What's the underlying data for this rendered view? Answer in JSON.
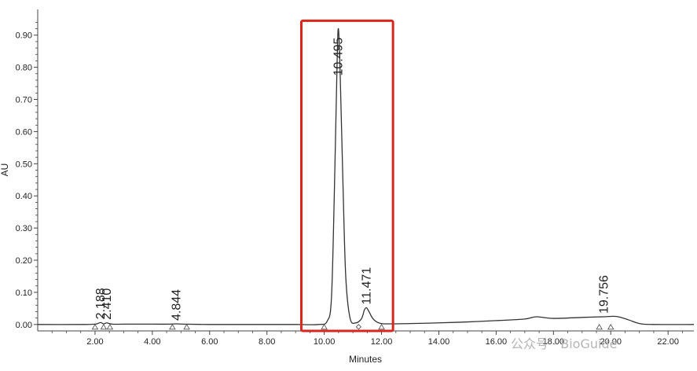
{
  "chart_data": {
    "type": "line",
    "title": "",
    "xlabel": "Minutes",
    "ylabel": "AU",
    "xlim": [
      0.0,
      22.9
    ],
    "ylim": [
      -0.02,
      0.98
    ],
    "x_ticks": [
      2.0,
      4.0,
      6.0,
      8.0,
      10.0,
      12.0,
      14.0,
      16.0,
      18.0,
      20.0,
      22.0
    ],
    "x_tick_labels": [
      "2.00",
      "4.00",
      "6.00",
      "8.00",
      "10.00",
      "12.00",
      "14.00",
      "16.00",
      "18.00",
      "20.00",
      "22.00"
    ],
    "y_ticks": [
      0.0,
      0.1,
      0.2,
      0.3,
      0.4,
      0.5,
      0.6,
      0.7,
      0.8,
      0.9
    ],
    "y_tick_labels": [
      "0.00",
      "0.10",
      "0.20",
      "0.30",
      "0.40",
      "0.50",
      "0.60",
      "0.70",
      "0.80",
      "0.90"
    ],
    "grid": false,
    "series": [
      {
        "color": "#333333",
        "x": [
          0.0,
          1.5,
          2.0,
          2.19,
          2.3,
          2.41,
          2.6,
          3.0,
          4.0,
          4.6,
          4.844,
          5.1,
          6.0,
          7.0,
          8.0,
          9.0,
          9.8,
          10.1,
          10.25,
          10.35,
          10.45,
          10.495,
          10.55,
          10.65,
          10.75,
          10.9,
          11.1,
          11.3,
          11.4,
          11.471,
          11.55,
          11.7,
          11.9,
          12.2,
          13.0,
          14.0,
          15.0,
          16.0,
          17.0,
          17.4,
          18.0,
          19.0,
          19.756,
          20.2,
          20.6,
          21.0,
          21.5,
          22.9
        ],
        "y": [
          0.0,
          0.0,
          0.001,
          0.006,
          0.002,
          0.005,
          0.001,
          0.001,
          0.001,
          0.001,
          0.002,
          0.001,
          0.0,
          0.0,
          0.0,
          0.0,
          0.0,
          0.01,
          0.08,
          0.4,
          0.82,
          0.92,
          0.8,
          0.45,
          0.15,
          0.02,
          0.005,
          0.018,
          0.045,
          0.052,
          0.042,
          0.018,
          0.005,
          0.002,
          0.003,
          0.005,
          0.008,
          0.012,
          0.017,
          0.024,
          0.019,
          0.022,
          0.024,
          0.025,
          0.015,
          0.003,
          0.0,
          0.0
        ]
      }
    ],
    "peak_labels": [
      {
        "text": "2.188",
        "x": 2.188,
        "y": 0.006
      },
      {
        "text": "2.410",
        "x": 2.41,
        "y": 0.005
      },
      {
        "text": "4.844",
        "x": 4.844,
        "y": 0.002
      },
      {
        "text": "10.495",
        "x": 10.495,
        "y": 0.92
      },
      {
        "text": "11.471",
        "x": 11.471,
        "y": 0.052
      },
      {
        "text": "19.756",
        "x": 19.756,
        "y": 0.024
      }
    ],
    "integration_markers": [
      {
        "x": 2.0,
        "shape": "triangle"
      },
      {
        "x": 2.3,
        "shape": "triangle"
      },
      {
        "x": 2.52,
        "shape": "triangle"
      },
      {
        "x": 4.7,
        "shape": "triangle"
      },
      {
        "x": 5.2,
        "shape": "triangle"
      },
      {
        "x": 10.0,
        "shape": "triangle"
      },
      {
        "x": 11.2,
        "shape": "diamond"
      },
      {
        "x": 12.0,
        "shape": "triangle"
      },
      {
        "x": 19.6,
        "shape": "triangle"
      },
      {
        "x": 20.0,
        "shape": "triangle"
      }
    ],
    "highlight_box": {
      "x_range": [
        9.2,
        12.4
      ],
      "y_range": [
        -0.02,
        0.945
      ],
      "color": "#d9261c"
    }
  },
  "watermark": {
    "text": "公众号 · BioGuide"
  },
  "colors": {
    "trace": "#333333",
    "axis": "#444444",
    "highlight": "#d9261c",
    "marker": "#555555"
  }
}
